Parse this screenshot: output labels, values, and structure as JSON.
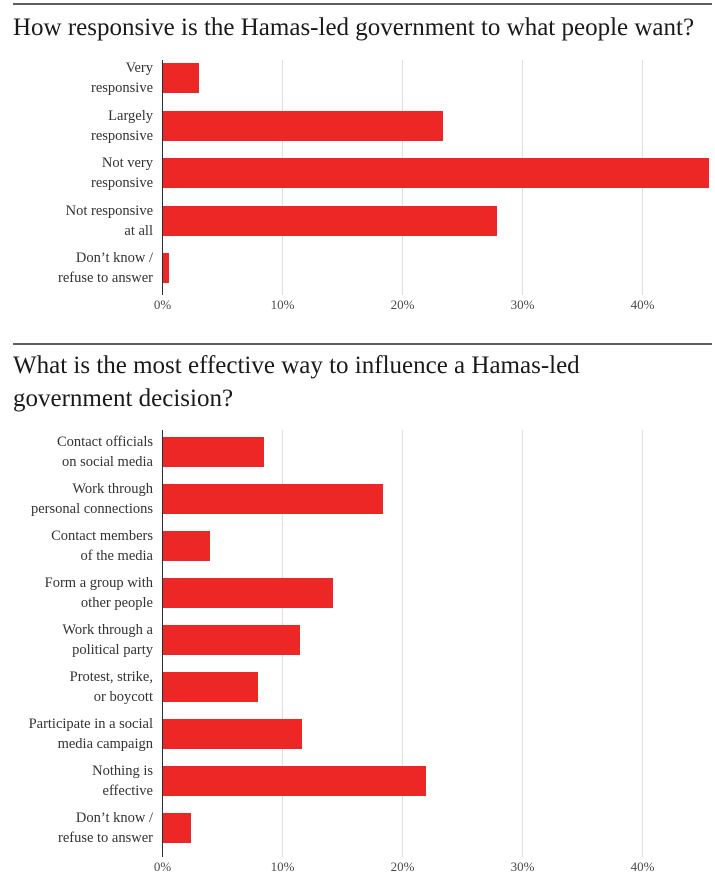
{
  "colors": {
    "background": "#ffffff",
    "bar": "#ec2726",
    "axis": "#2e2e2e",
    "grid": "#dfdfdf",
    "rule": "#5f5f5f",
    "title": "#1a1a1a",
    "label": "#333333",
    "tick": "#4a4a4a"
  },
  "chart_data": [
    {
      "type": "bar",
      "orientation": "horizontal",
      "title": "How responsive is the Hamas-led government to what people want?",
      "categories": [
        "Very\nresponsive",
        "Largely\nresponsive",
        "Not very\nresponsive",
        "Not responsive\nat all",
        "Don’t know /\nrefuse to answer"
      ],
      "values": [
        3.0,
        23.3,
        45.5,
        27.8,
        0.5
      ],
      "unit": "%",
      "xlabel": "",
      "ylabel": "",
      "xlim": [
        0,
        46
      ],
      "xticks": [
        0,
        10,
        20,
        30,
        40
      ],
      "xtick_labels": [
        "0%",
        "10%",
        "20%",
        "30%",
        "40%"
      ],
      "grid": true,
      "legend": false
    },
    {
      "type": "bar",
      "orientation": "horizontal",
      "title": "What is the most effective way to influence a Hamas-led\ngovernment decision?",
      "categories": [
        "Contact officials\non social media",
        "Work through\npersonal connections",
        "Contact members\nof the media",
        "Form a group with\nother people",
        "Work through a\npolitical party",
        "Protest, strike,\nor boycott",
        "Participate in a social\nmedia campaign",
        "Nothing is\neffective",
        "Don’t know /\nrefuse to answer"
      ],
      "values": [
        8.4,
        18.3,
        3.9,
        14.2,
        11.4,
        7.9,
        11.6,
        21.9,
        2.3
      ],
      "unit": "%",
      "xlabel": "",
      "ylabel": "",
      "xlim": [
        0,
        46
      ],
      "xticks": [
        0,
        10,
        20,
        30,
        40
      ],
      "xtick_labels": [
        "0%",
        "10%",
        "20%",
        "30%",
        "40%"
      ],
      "grid": true,
      "legend": false
    }
  ]
}
